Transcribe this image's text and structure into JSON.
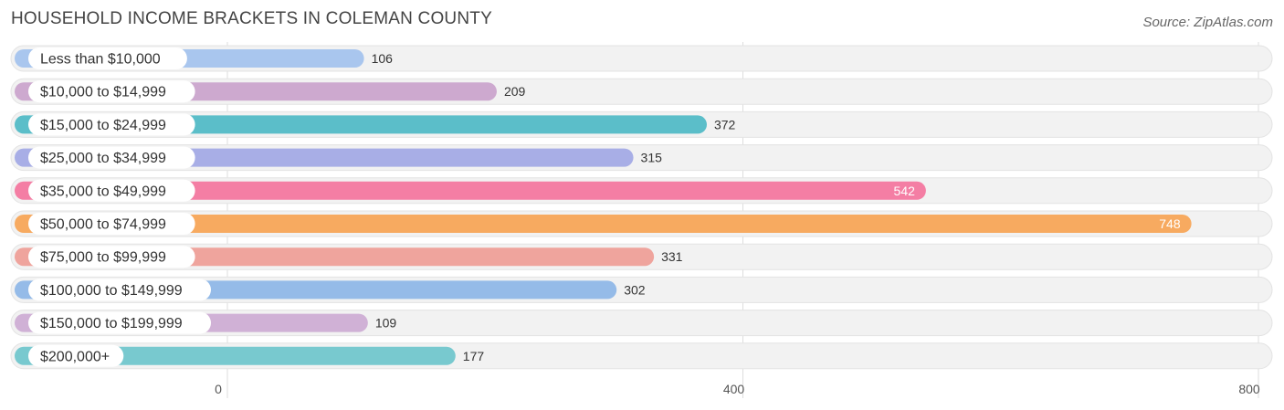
{
  "title": "HOUSEHOLD INCOME BRACKETS IN COLEMAN COUNTY",
  "source": "Source: ZipAtlas.com",
  "chart_data": {
    "type": "bar",
    "orientation": "horizontal",
    "title": "HOUSEHOLD INCOME BRACKETS IN COLEMAN COUNTY",
    "categories": [
      "Less than $10,000",
      "$10,000 to $14,999",
      "$15,000 to $24,999",
      "$25,000 to $34,999",
      "$35,000 to $49,999",
      "$50,000 to $74,999",
      "$75,000 to $99,999",
      "$100,000 to $149,999",
      "$150,000 to $199,999",
      "$200,000+"
    ],
    "values": [
      106,
      209,
      372,
      315,
      542,
      748,
      331,
      302,
      109,
      177
    ],
    "colors": [
      "#a9c6ee",
      "#cda9cf",
      "#5bbec9",
      "#a8aee6",
      "#f47ea4",
      "#f7aa60",
      "#efa49d",
      "#95bbe8",
      "#d0b1d6",
      "#78c9cf"
    ],
    "xlim": [
      0,
      800
    ],
    "xticks": [
      0,
      400,
      800
    ],
    "grid": true,
    "xlabel": "",
    "ylabel": ""
  }
}
